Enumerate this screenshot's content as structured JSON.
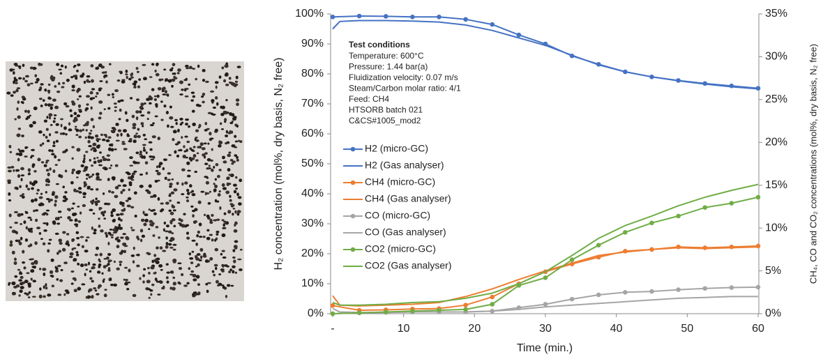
{
  "chart_data": {
    "type": "line",
    "x_label": "Time (min.)",
    "y_label": "H₂ concentration (mol%, dry basis, N₂ free)",
    "y2_label": "CH₄, CO and CO₂ concentrations (mol%, dry basis, N₂ free)",
    "annotation_title": "Test conditions",
    "annotations": [
      "Temperature: 600°C",
      "Pressure: 1.44 bar(a)",
      "Fluidization velocity: 0.07 m/s",
      "Steam/Carbon molar ratio: 4/1",
      "Feed: CH4",
      "HTSORB batch 021",
      "C&CS#1005_mod2"
    ],
    "xlim": [
      0,
      60
    ],
    "xticks": [
      {
        "value": 0,
        "label": "-"
      },
      10,
      20,
      30,
      40,
      50,
      60
    ],
    "ylim": [
      0,
      100
    ],
    "yticks": [
      {
        "value": 0,
        "label": "0%"
      },
      {
        "value": 10,
        "label": "10%"
      },
      {
        "value": 20,
        "label": "20%"
      },
      {
        "value": 30,
        "label": "30%"
      },
      {
        "value": 40,
        "label": "40%"
      },
      {
        "value": 50,
        "label": "50%"
      },
      {
        "value": 60,
        "label": "60%"
      },
      {
        "value": 70,
        "label": "70%"
      },
      {
        "value": 80,
        "label": "80%"
      },
      {
        "value": 90,
        "label": "90%"
      },
      {
        "value": 100,
        "label": "100%"
      }
    ],
    "y2lim": [
      0,
      35
    ],
    "y2ticks": [
      {
        "value": 0,
        "label": "0%"
      },
      {
        "value": 5,
        "label": "5%"
      },
      {
        "value": 10,
        "label": "10%"
      },
      {
        "value": 15,
        "label": "15%"
      },
      {
        "value": 20,
        "label": "20%"
      },
      {
        "value": 25,
        "label": "25%"
      },
      {
        "value": 30,
        "label": "30%"
      },
      {
        "value": 35,
        "label": "35%"
      }
    ],
    "grid": false,
    "series": [
      {
        "name": "H2 (micro-GC)",
        "color": "#4472c4",
        "markers": true,
        "axis": "y",
        "x": [
          0,
          3.75,
          7.5,
          11.25,
          15,
          18.75,
          22.5,
          26.25,
          30,
          33.75,
          37.5,
          41.25,
          45,
          48.75,
          52.5,
          56.25,
          60
        ],
        "values": [
          99,
          99.3,
          99.2,
          99,
          99,
          98.2,
          96.5,
          93,
          90,
          86,
          83.2,
          80.7,
          79,
          77.8,
          76.8,
          76,
          75.2
        ]
      },
      {
        "name": "H2 (Gas analyser)",
        "color": "#4472c4",
        "markers": false,
        "axis": "y",
        "x": [
          0,
          1,
          3.75,
          7.5,
          11.25,
          15,
          18.75,
          22.5,
          26.25,
          30,
          33.75,
          37.5,
          41.25,
          45,
          48.75,
          52.5,
          56.25,
          60
        ],
        "values": [
          95,
          97.5,
          97.8,
          97.8,
          97.6,
          97.3,
          96.3,
          94.5,
          92,
          89.5,
          86.2,
          83,
          80.7,
          79,
          77.7,
          76.6,
          75.7,
          75
        ]
      },
      {
        "name": "CH4 (micro-GC)",
        "color": "#ed7d31",
        "markers": true,
        "axis": "y2",
        "x": [
          0,
          3.75,
          7.5,
          11.25,
          15,
          18.75,
          22.5,
          26.25,
          30,
          33.75,
          37.5,
          41.25,
          45,
          48.75,
          52.5,
          56.25,
          60
        ],
        "values": [
          0.95,
          0.4,
          0.45,
          0.55,
          0.6,
          1.0,
          1.95,
          3.5,
          4.9,
          5.8,
          6.6,
          7.3,
          7.5,
          7.8,
          7.7,
          7.8,
          7.9
        ]
      },
      {
        "name": "CH4 (Gas analyser)",
        "color": "#ed7d31",
        "markers": false,
        "axis": "y2",
        "x": [
          0,
          1,
          3.75,
          7.5,
          11.25,
          15,
          18.75,
          22.5,
          26.25,
          30,
          33.75,
          37.5,
          41.25,
          45,
          48.75,
          52.5,
          56.25,
          60
        ],
        "values": [
          2.1,
          1.0,
          0.9,
          1.0,
          1.1,
          1.3,
          2.0,
          2.9,
          4.0,
          5.0,
          5.9,
          6.8,
          7.2,
          7.5,
          7.7,
          7.6,
          7.7,
          7.8
        ]
      },
      {
        "name": "CO (micro-GC)",
        "color": "#a5a5a5",
        "markers": true,
        "axis": "y2",
        "x": [
          0,
          3.75,
          7.5,
          11.25,
          15,
          18.75,
          22.5,
          26.25,
          30,
          33.75,
          37.5,
          41.25,
          45,
          48.75,
          52.5,
          56.25,
          60
        ],
        "values": [
          0,
          0.1,
          0.15,
          0.2,
          0.2,
          0.2,
          0.3,
          0.7,
          1.1,
          1.7,
          2.2,
          2.5,
          2.6,
          2.8,
          2.95,
          3.05,
          3.1
        ]
      },
      {
        "name": "CO (Gas analyser)",
        "color": "#a5a5a5",
        "markers": false,
        "axis": "y2",
        "x": [
          0,
          1,
          3.75,
          7.5,
          11.25,
          15,
          18.75,
          22.5,
          26.25,
          30,
          33.75,
          37.5,
          41.25,
          45,
          48.75,
          52.5,
          56.25,
          60
        ],
        "values": [
          0.6,
          0.2,
          0.15,
          0.15,
          0.2,
          0.2,
          0.2,
          0.3,
          0.5,
          0.8,
          1.0,
          1.2,
          1.4,
          1.6,
          1.8,
          1.9,
          2.0,
          2.0
        ]
      },
      {
        "name": "CO2 (micro-GC)",
        "color": "#70ad47",
        "markers": true,
        "axis": "y2",
        "x": [
          0,
          3.75,
          7.5,
          11.25,
          15,
          18.75,
          22.5,
          26.25,
          30,
          33.75,
          37.5,
          41.25,
          45,
          48.75,
          52.5,
          56.25,
          60
        ],
        "values": [
          0,
          0.1,
          0.2,
          0.3,
          0.4,
          0.5,
          1.1,
          3.3,
          4.2,
          6.3,
          8.0,
          9.5,
          10.6,
          11.4,
          12.4,
          12.9,
          13.6
        ]
      },
      {
        "name": "CO2 (Gas analyser)",
        "color": "#70ad47",
        "markers": false,
        "axis": "y2",
        "x": [
          0,
          1,
          3.75,
          7.5,
          11.25,
          15,
          18.75,
          22.5,
          26.25,
          30,
          33.75,
          37.5,
          41.25,
          45,
          48.75,
          52.5,
          56.25,
          60
        ],
        "values": [
          1.3,
          1.0,
          1.0,
          1.1,
          1.3,
          1.4,
          1.8,
          2.4,
          3.5,
          4.9,
          6.8,
          8.8,
          10.3,
          11.4,
          12.6,
          13.6,
          14.4,
          15.1
        ]
      }
    ]
  }
}
